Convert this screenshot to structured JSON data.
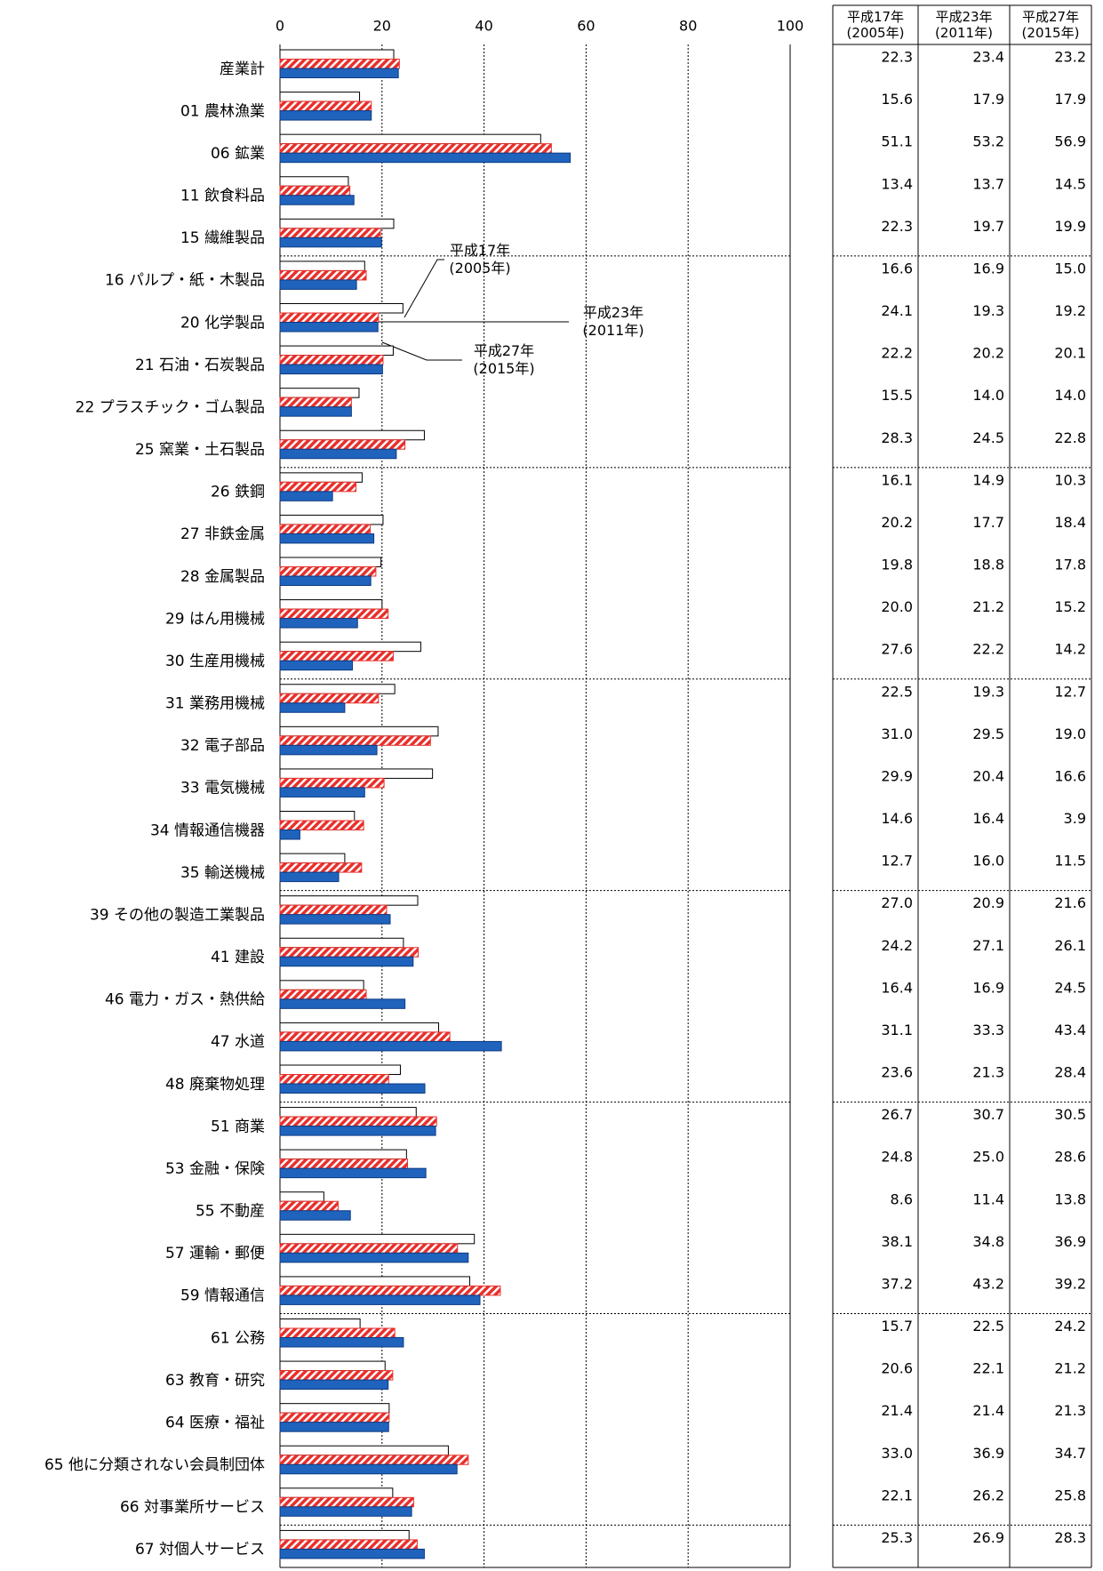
{
  "chart_data": {
    "type": "bar",
    "orientation": "horizontal",
    "categories": [
      "産業計",
      "01 農林漁業",
      "06 鉱業",
      "11 飲食料品",
      "15 繊維製品",
      "16 パルプ・紙・木製品",
      "20 化学製品",
      "21 石油・石炭製品",
      "22 プラスチック・ゴム製品",
      "25 窯業・土石製品",
      "26 鉄鋼",
      "27 非鉄金属",
      "28 金属製品",
      "29 はん用機械",
      "30 生産用機械",
      "31 業務用機械",
      "32 電子部品",
      "33 電気機械",
      "34 情報通信機器",
      "35 輸送機械",
      "39 その他の製造工業製品",
      "41 建設",
      "46 電力・ガス・熱供給",
      "47 水道",
      "48 廃棄物処理",
      "51 商業",
      "53 金融・保険",
      "55 不動産",
      "57 運輸・郵便",
      "59 情報通信",
      "61 公務",
      "63 教育・研究",
      "64 医療・福祉",
      "65 他に分類されない会員制団体",
      "66 対事業所サービス",
      "67 対個人サービス"
    ],
    "series": [
      {
        "name": "平成17年\n(2005年)",
        "color": "#ffffff",
        "values": [
          22.3,
          15.6,
          51.1,
          13.4,
          22.3,
          16.6,
          24.1,
          22.2,
          15.5,
          28.3,
          16.1,
          20.2,
          19.8,
          20.0,
          27.6,
          22.5,
          31.0,
          29.9,
          14.6,
          12.7,
          27.0,
          24.2,
          16.4,
          31.1,
          23.6,
          26.7,
          24.8,
          8.6,
          38.1,
          37.2,
          15.7,
          20.6,
          21.4,
          33.0,
          22.1,
          25.3
        ],
        "value_labels": [
          "22.3",
          "15.6",
          "51.1",
          "13.4",
          "22.3",
          "16.6",
          "24.1",
          "22.2",
          "15.5",
          "28.3",
          "16.1",
          "20.2",
          "19.8",
          "20.0",
          "27.6",
          "22.5",
          "31.0",
          "29.9",
          "14.6",
          "12.7",
          "27.0",
          "24.2",
          "16.4",
          "31.1",
          "23.6",
          "26.7",
          "24.8",
          "8.6",
          "38.1",
          "37.2",
          "15.7",
          "20.6",
          "21.4",
          "33.0",
          "22.1",
          "25.3"
        ]
      },
      {
        "name": "平成23年\n(2011年)",
        "color": "#e8302c",
        "values": [
          23.4,
          17.9,
          53.2,
          13.7,
          19.7,
          16.9,
          19.3,
          20.2,
          14.0,
          24.5,
          14.9,
          17.7,
          18.8,
          21.2,
          22.2,
          19.3,
          29.5,
          20.4,
          16.4,
          16.0,
          20.9,
          27.1,
          16.9,
          33.3,
          21.3,
          30.7,
          25.0,
          11.4,
          34.8,
          43.2,
          22.5,
          22.1,
          21.4,
          36.9,
          26.2,
          26.9
        ],
        "value_labels": [
          "23.4",
          "17.9",
          "53.2",
          "13.7",
          "19.7",
          "16.9",
          "19.3",
          "20.2",
          "14.0",
          "24.5",
          "14.9",
          "17.7",
          "18.8",
          "21.2",
          "22.2",
          "19.3",
          "29.5",
          "20.4",
          "16.4",
          "16.0",
          "20.9",
          "27.1",
          "16.9",
          "33.3",
          "21.3",
          "30.7",
          "25.0",
          "11.4",
          "34.8",
          "43.2",
          "22.5",
          "22.1",
          "21.4",
          "36.9",
          "26.2",
          "26.9"
        ]
      },
      {
        "name": "平成27年\n(2015年)",
        "color": "#1f63bd",
        "values": [
          23.2,
          17.9,
          56.9,
          14.5,
          19.9,
          15.0,
          19.2,
          20.1,
          14.0,
          22.8,
          10.3,
          18.4,
          17.8,
          15.2,
          14.2,
          12.7,
          19.0,
          16.6,
          3.9,
          11.5,
          21.6,
          26.1,
          24.5,
          43.4,
          28.4,
          30.5,
          28.6,
          13.8,
          36.9,
          39.2,
          24.2,
          21.2,
          21.3,
          34.7,
          25.8,
          28.3
        ],
        "value_labels": [
          "23.2",
          "17.9",
          "56.9",
          "14.5",
          "19.9",
          "15.0",
          "19.2",
          "20.1",
          "14.0",
          "22.8",
          "10.3",
          "18.4",
          "17.8",
          "15.2",
          "14.2",
          "12.7",
          "19.0",
          "16.6",
          "3.9",
          "11.5",
          "21.6",
          "26.1",
          "24.5",
          "43.4",
          "28.4",
          "30.5",
          "28.6",
          "13.8",
          "36.9",
          "39.2",
          "24.2",
          "21.2",
          "21.3",
          "34.7",
          "25.8",
          "28.3"
        ]
      }
    ],
    "xlim": [
      0,
      100
    ],
    "xticks": [
      0,
      20,
      40,
      60,
      80,
      100
    ],
    "grid": true
  }
}
